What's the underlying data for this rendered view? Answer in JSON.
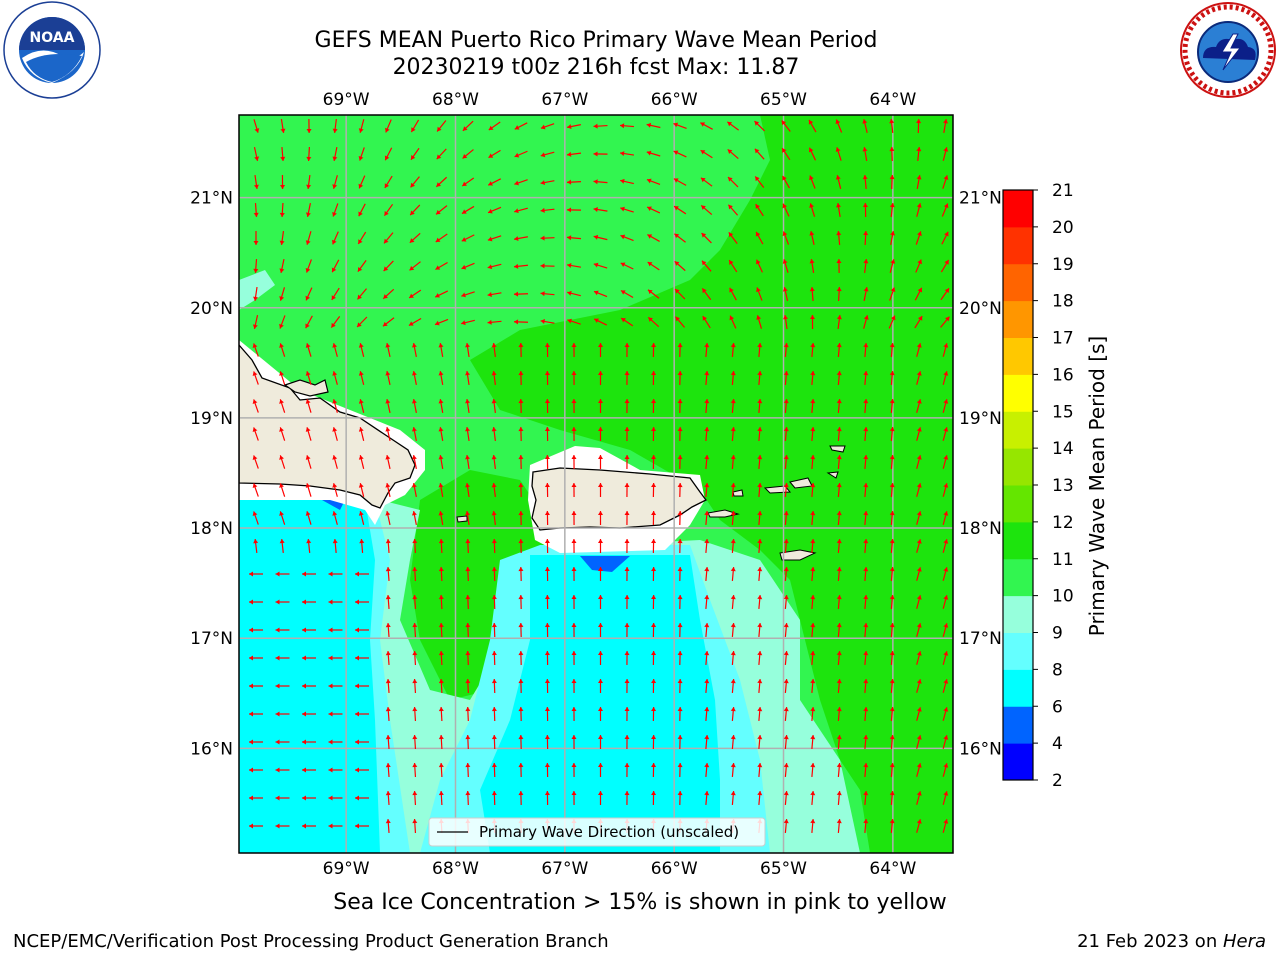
{
  "header": {
    "title_line1": "GEFS MEAN Puerto Rico Primary Wave Mean Period",
    "title_line2": "20230219 t00z 216h fcst   Max: 11.87"
  },
  "logos": {
    "left": "noaa-logo",
    "right": "national-weather-service-logo"
  },
  "map": {
    "region": "Puerto Rico",
    "lon_labels": [
      "69°W",
      "68°W",
      "67°W",
      "66°W",
      "65°W",
      "64°W"
    ],
    "lat_labels": [
      "21°N",
      "20°N",
      "19°N",
      "18°N",
      "17°N",
      "16°N"
    ],
    "lon_range": [
      -69.98,
      -63.45
    ],
    "lat_range": [
      15.05,
      21.75
    ],
    "land_color": "#efebdc",
    "arrow_color": "#ff0000",
    "grid": true,
    "legend_label": "Primary Wave Direction (unscaled)"
  },
  "colorbar": {
    "label": "Primary Wave Mean Period [s]",
    "ticks": [
      "2",
      "4",
      "6",
      "8",
      "9",
      "10",
      "11",
      "12",
      "13",
      "14",
      "15",
      "16",
      "17",
      "18",
      "19",
      "20",
      "21"
    ],
    "colors": [
      "#0000ff",
      "#0064ff",
      "#00ffff",
      "#64ffff",
      "#96ffdc",
      "#32f550",
      "#1de40d",
      "#64e600",
      "#96e600",
      "#c8f000",
      "#ffff00",
      "#ffc800",
      "#ff9600",
      "#ff6400",
      "#ff3200",
      "#ff0000"
    ]
  },
  "subtitle": "Sea Ice Concentration > 15% is shown in pink to yellow",
  "footer": {
    "left": "NCEP/EMC/Verification Post Processing Product Generation Branch",
    "right_prefix": "21 Feb 2023 on ",
    "right_host": "Hera"
  }
}
